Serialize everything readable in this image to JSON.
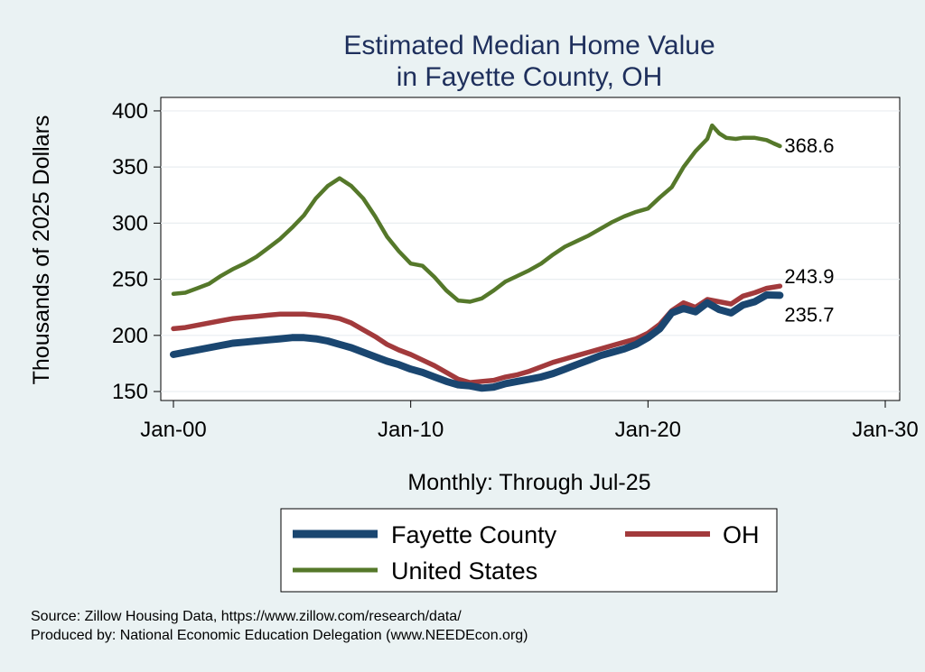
{
  "chart_data": {
    "type": "line",
    "title": [
      "Estimated Median Home Value",
      "in Fayette County, OH"
    ],
    "ylabel": "Thousands of 2025 Dollars",
    "xlabel": "Monthly: Through Jul-25",
    "ylim": [
      142,
      412
    ],
    "xlim": [
      0,
      30.3
    ],
    "yticks": [
      150,
      200,
      250,
      300,
      350,
      400
    ],
    "xticks": [
      {
        "value": 0,
        "label": "Jan-00"
      },
      {
        "value": 10,
        "label": "Jan-10"
      },
      {
        "value": 20,
        "label": "Jan-20"
      },
      {
        "value": 30,
        "label": "Jan-30"
      }
    ],
    "series": [
      {
        "name": "United States",
        "color": "#55782a",
        "end_label": "368.6",
        "points": [
          [
            0,
            237
          ],
          [
            0.5,
            238
          ],
          [
            1,
            242
          ],
          [
            1.5,
            246
          ],
          [
            2,
            253
          ],
          [
            2.5,
            259
          ],
          [
            3,
            264
          ],
          [
            3.5,
            270
          ],
          [
            4,
            278
          ],
          [
            4.5,
            286
          ],
          [
            5,
            296
          ],
          [
            5.5,
            307
          ],
          [
            6,
            322
          ],
          [
            6.5,
            333
          ],
          [
            7,
            340
          ],
          [
            7.5,
            333
          ],
          [
            8,
            322
          ],
          [
            8.5,
            306
          ],
          [
            9,
            288
          ],
          [
            9.5,
            275
          ],
          [
            10,
            264
          ],
          [
            10.5,
            262
          ],
          [
            11,
            252
          ],
          [
            11.5,
            240
          ],
          [
            12,
            231
          ],
          [
            12.5,
            230
          ],
          [
            13,
            233
          ],
          [
            13.5,
            240
          ],
          [
            14,
            248
          ],
          [
            14.5,
            253
          ],
          [
            15,
            258
          ],
          [
            15.5,
            264
          ],
          [
            16,
            272
          ],
          [
            16.5,
            279
          ],
          [
            17,
            284
          ],
          [
            17.5,
            289
          ],
          [
            18,
            295
          ],
          [
            18.5,
            301
          ],
          [
            19,
            306
          ],
          [
            19.5,
            310
          ],
          [
            20,
            313
          ],
          [
            20.5,
            323
          ],
          [
            21,
            332
          ],
          [
            21.5,
            350
          ],
          [
            22,
            364
          ],
          [
            22.5,
            375
          ],
          [
            22.7,
            387
          ],
          [
            23,
            380
          ],
          [
            23.3,
            376
          ],
          [
            23.7,
            375
          ],
          [
            24,
            376
          ],
          [
            24.5,
            376
          ],
          [
            25,
            374
          ],
          [
            25.3,
            371
          ],
          [
            25.56,
            368.6
          ]
        ]
      },
      {
        "name": "OH",
        "color": "#a23a3c",
        "end_label": "243.9",
        "points": [
          [
            0,
            206
          ],
          [
            0.5,
            207
          ],
          [
            1,
            209
          ],
          [
            1.5,
            211
          ],
          [
            2,
            213
          ],
          [
            2.5,
            215
          ],
          [
            3,
            216
          ],
          [
            3.5,
            217
          ],
          [
            4,
            218
          ],
          [
            4.5,
            219
          ],
          [
            5,
            219
          ],
          [
            5.5,
            219
          ],
          [
            6,
            218
          ],
          [
            6.5,
            217
          ],
          [
            7,
            215
          ],
          [
            7.5,
            211
          ],
          [
            8,
            205
          ],
          [
            8.5,
            199
          ],
          [
            9,
            192
          ],
          [
            9.5,
            187
          ],
          [
            10,
            183
          ],
          [
            10.5,
            178
          ],
          [
            11,
            173
          ],
          [
            11.5,
            167
          ],
          [
            12,
            161
          ],
          [
            12.5,
            158
          ],
          [
            13,
            159
          ],
          [
            13.5,
            160
          ],
          [
            14,
            163
          ],
          [
            14.5,
            165
          ],
          [
            15,
            168
          ],
          [
            15.5,
            172
          ],
          [
            16,
            176
          ],
          [
            16.5,
            179
          ],
          [
            17,
            182
          ],
          [
            17.5,
            185
          ],
          [
            18,
            188
          ],
          [
            18.5,
            191
          ],
          [
            19,
            194
          ],
          [
            19.5,
            197
          ],
          [
            20,
            202
          ],
          [
            20.5,
            210
          ],
          [
            21,
            222
          ],
          [
            21.5,
            229
          ],
          [
            22,
            225
          ],
          [
            22.5,
            232
          ],
          [
            23,
            230
          ],
          [
            23.5,
            228
          ],
          [
            24,
            235
          ],
          [
            24.5,
            238
          ],
          [
            25,
            242
          ],
          [
            25.56,
            243.9
          ]
        ]
      },
      {
        "name": "Fayette County",
        "color": "#1a4670",
        "end_label": "235.7",
        "points": [
          [
            0,
            183
          ],
          [
            0.5,
            185
          ],
          [
            1,
            187
          ],
          [
            1.5,
            189
          ],
          [
            2,
            191
          ],
          [
            2.5,
            193
          ],
          [
            3,
            194
          ],
          [
            3.5,
            195
          ],
          [
            4,
            196
          ],
          [
            4.5,
            197
          ],
          [
            5,
            198
          ],
          [
            5.5,
            198
          ],
          [
            6,
            197
          ],
          [
            6.5,
            195
          ],
          [
            7,
            192
          ],
          [
            7.5,
            189
          ],
          [
            8,
            185
          ],
          [
            8.5,
            181
          ],
          [
            9,
            177
          ],
          [
            9.5,
            174
          ],
          [
            10,
            170
          ],
          [
            10.5,
            167
          ],
          [
            11,
            163
          ],
          [
            11.5,
            159
          ],
          [
            12,
            156
          ],
          [
            12.5,
            155
          ],
          [
            13,
            153
          ],
          [
            13.5,
            154
          ],
          [
            14,
            157
          ],
          [
            14.5,
            159
          ],
          [
            15,
            161
          ],
          [
            15.5,
            163
          ],
          [
            16,
            166
          ],
          [
            16.5,
            170
          ],
          [
            17,
            174
          ],
          [
            17.5,
            178
          ],
          [
            18,
            182
          ],
          [
            18.5,
            185
          ],
          [
            19,
            188
          ],
          [
            19.5,
            192
          ],
          [
            20,
            198
          ],
          [
            20.5,
            206
          ],
          [
            21,
            220
          ],
          [
            21.5,
            224
          ],
          [
            22,
            221
          ],
          [
            22.5,
            229
          ],
          [
            23,
            223
          ],
          [
            23.5,
            220
          ],
          [
            24,
            227
          ],
          [
            24.5,
            230
          ],
          [
            25,
            236
          ],
          [
            25.56,
            235.7
          ]
        ]
      }
    ],
    "legend": [
      {
        "name": "Fayette County",
        "color": "#1a4670"
      },
      {
        "name": "OH",
        "color": "#a23a3c"
      },
      {
        "name": "United States",
        "color": "#55782a"
      }
    ]
  },
  "source": {
    "line1": "Source: Zillow Housing Data, https://www.zillow.com/research/data/",
    "line2": "Produced by: National Economic Education Delegation (www.NEEDEcon.org)"
  }
}
